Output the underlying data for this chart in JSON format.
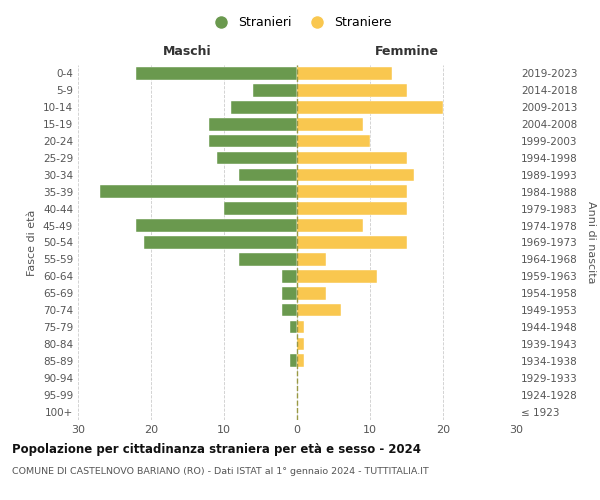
{
  "age_groups": [
    "100+",
    "95-99",
    "90-94",
    "85-89",
    "80-84",
    "75-79",
    "70-74",
    "65-69",
    "60-64",
    "55-59",
    "50-54",
    "45-49",
    "40-44",
    "35-39",
    "30-34",
    "25-29",
    "20-24",
    "15-19",
    "10-14",
    "5-9",
    "0-4"
  ],
  "birth_years": [
    "≤ 1923",
    "1924-1928",
    "1929-1933",
    "1934-1938",
    "1939-1943",
    "1944-1948",
    "1949-1953",
    "1954-1958",
    "1959-1963",
    "1964-1968",
    "1969-1973",
    "1974-1978",
    "1979-1983",
    "1984-1988",
    "1989-1993",
    "1994-1998",
    "1999-2003",
    "2004-2008",
    "2009-2013",
    "2014-2018",
    "2019-2023"
  ],
  "maschi": [
    0,
    0,
    0,
    1,
    0,
    1,
    2,
    2,
    2,
    8,
    21,
    22,
    10,
    27,
    8,
    11,
    12,
    12,
    9,
    6,
    22
  ],
  "femmine": [
    0,
    0,
    0,
    1,
    1,
    1,
    6,
    4,
    11,
    4,
    15,
    9,
    15,
    15,
    16,
    15,
    10,
    9,
    20,
    15,
    13
  ],
  "male_color": "#6a994e",
  "female_color": "#f9c74f",
  "background_color": "#ffffff",
  "grid_color": "#cccccc",
  "title": "Popolazione per cittadinanza straniera per età e sesso - 2024",
  "subtitle": "COMUNE DI CASTELNOVO BARIANO (RO) - Dati ISTAT al 1° gennaio 2024 - TUTTITALIA.IT",
  "legend_male": "Stranieri",
  "legend_female": "Straniere",
  "xlabel_left": "Maschi",
  "xlabel_right": "Femmine",
  "ylabel_left": "Fasce di età",
  "ylabel_right": "Anni di nascita",
  "xlim": 30
}
